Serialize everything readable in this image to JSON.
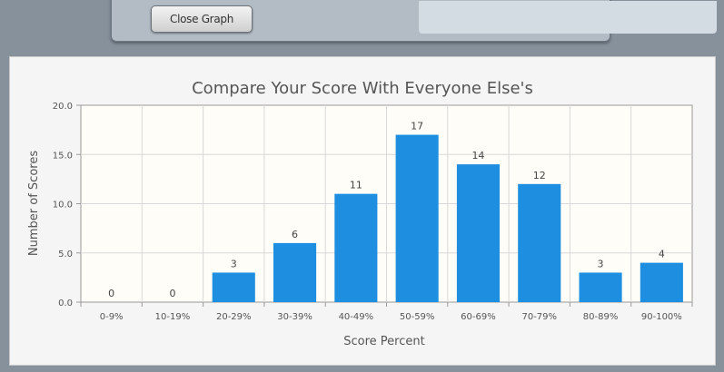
{
  "toolbar": {
    "close_graph_label": "Close Graph"
  },
  "chart_data": {
    "type": "bar",
    "title": "Compare Your Score With Everyone Else's",
    "xlabel": "Score Percent",
    "ylabel": "Number of Scores",
    "categories": [
      "0-9%",
      "10-19%",
      "20-29%",
      "30-39%",
      "40-49%",
      "50-59%",
      "60-69%",
      "70-79%",
      "80-89%",
      "90-100%"
    ],
    "values": [
      0,
      0,
      3,
      6,
      11,
      17,
      14,
      12,
      3,
      4
    ],
    "data_labels": [
      "0",
      "0",
      "3",
      "6",
      "11",
      "17",
      "14",
      "12",
      "3",
      "4"
    ],
    "ylim": [
      0,
      20
    ],
    "yticks": [
      0,
      5,
      10,
      15,
      20
    ],
    "ytick_labels": [
      "0.0",
      "5.0",
      "10.0",
      "15.0",
      "20.0"
    ],
    "grid": true,
    "colors": {
      "bar": "#1e8fe0",
      "plot_background": "#fffdf7",
      "grid": "#d8d8d8",
      "axis": "#999999"
    }
  }
}
